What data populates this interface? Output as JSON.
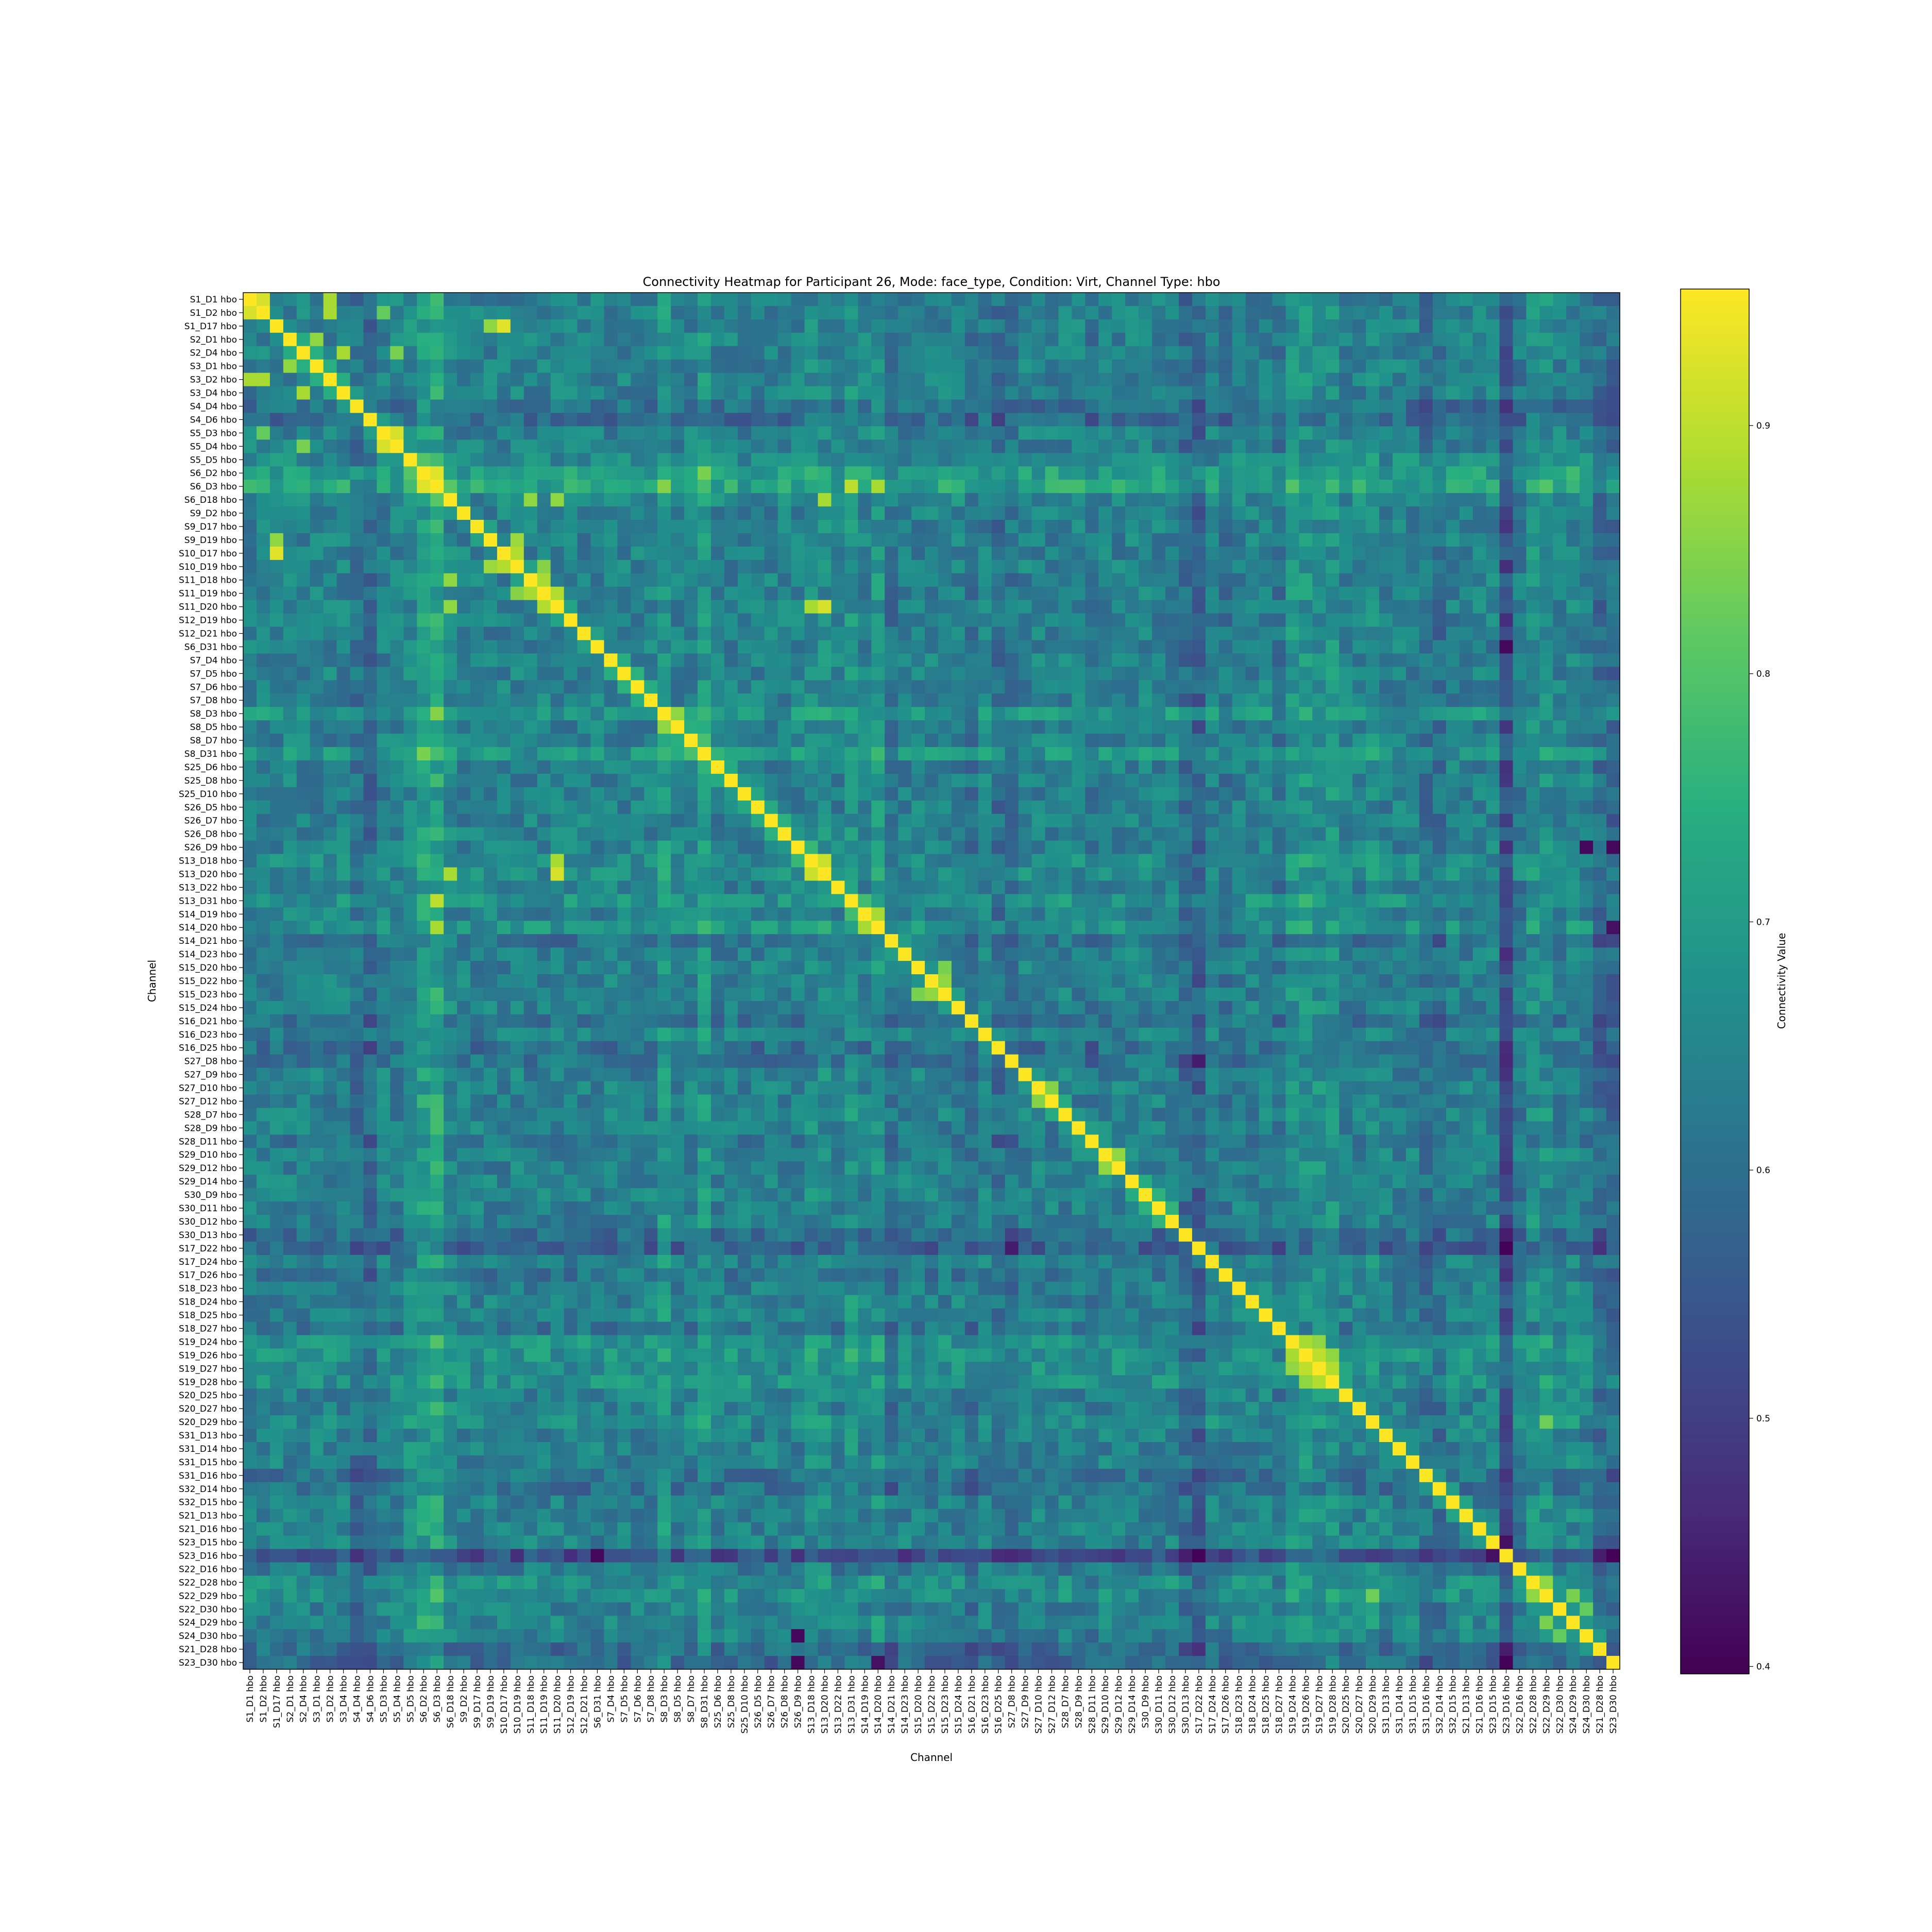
{
  "chart_data": {
    "type": "heatmap",
    "title": "Connectivity Heatmap for Participant 26, Mode: face_type, Condition: Virt, Channel Type: hbo",
    "xlabel": "Channel",
    "ylabel": "Channel",
    "colorbar_label": "Connectivity Value",
    "colormap": "viridis",
    "value_range": [
      0.397,
      0.955
    ],
    "colorbar_ticks": [
      0.4,
      0.5,
      0.6,
      0.7,
      0.8,
      0.9
    ],
    "channels": [
      "S1_D1 hbo",
      "S1_D2 hbo",
      "S1_D17 hbo",
      "S2_D1 hbo",
      "S2_D4 hbo",
      "S3_D1 hbo",
      "S3_D2 hbo",
      "S3_D4 hbo",
      "S4_D4 hbo",
      "S4_D6 hbo",
      "S5_D3 hbo",
      "S5_D4 hbo",
      "S5_D5 hbo",
      "S6_D2 hbo",
      "S6_D3 hbo",
      "S6_D18 hbo",
      "S9_D2 hbo",
      "S9_D17 hbo",
      "S9_D19 hbo",
      "S10_D17 hbo",
      "S10_D19 hbo",
      "S11_D18 hbo",
      "S11_D19 hbo",
      "S11_D20 hbo",
      "S12_D19 hbo",
      "S12_D21 hbo",
      "S6_D31 hbo",
      "S7_D4 hbo",
      "S7_D5 hbo",
      "S7_D6 hbo",
      "S7_D8 hbo",
      "S8_D3 hbo",
      "S8_D5 hbo",
      "S8_D7 hbo",
      "S8_D31 hbo",
      "S25_D6 hbo",
      "S25_D8 hbo",
      "S25_D10 hbo",
      "S26_D5 hbo",
      "S26_D7 hbo",
      "S26_D8 hbo",
      "S26_D9 hbo",
      "S13_D18 hbo",
      "S13_D20 hbo",
      "S13_D22 hbo",
      "S13_D31 hbo",
      "S14_D19 hbo",
      "S14_D20 hbo",
      "S14_D21 hbo",
      "S14_D23 hbo",
      "S15_D20 hbo",
      "S15_D22 hbo",
      "S15_D23 hbo",
      "S15_D24 hbo",
      "S16_D21 hbo",
      "S16_D23 hbo",
      "S16_D25 hbo",
      "S27_D8 hbo",
      "S27_D9 hbo",
      "S27_D10 hbo",
      "S27_D12 hbo",
      "S28_D7 hbo",
      "S28_D9 hbo",
      "S28_D11 hbo",
      "S29_D10 hbo",
      "S29_D12 hbo",
      "S29_D14 hbo",
      "S30_D9 hbo",
      "S30_D11 hbo",
      "S30_D12 hbo",
      "S30_D13 hbo",
      "S17_D22 hbo",
      "S17_D24 hbo",
      "S17_D26 hbo",
      "S18_D23 hbo",
      "S18_D24 hbo",
      "S18_D25 hbo",
      "S18_D27 hbo",
      "S19_D24 hbo",
      "S19_D26 hbo",
      "S19_D27 hbo",
      "S19_D28 hbo",
      "S20_D25 hbo",
      "S20_D27 hbo",
      "S20_D29 hbo",
      "S31_D13 hbo",
      "S31_D14 hbo",
      "S31_D15 hbo",
      "S31_D16 hbo",
      "S32_D14 hbo",
      "S32_D15 hbo",
      "S21_D13 hbo",
      "S21_D16 hbo",
      "S23_D15 hbo",
      "S23_D16 hbo",
      "S22_D16 hbo",
      "S22_D28 hbo",
      "S22_D29 hbo",
      "S22_D30 hbo",
      "S24_D29 hbo",
      "S24_D30 hbo",
      "S21_D28 hbo",
      "S23_D30 hbo"
    ],
    "diagonal": 0.955,
    "baseline": 0.64,
    "row_effects": {
      "S4_D4 hbo": -0.05,
      "S4_D6 hbo": -0.06,
      "S5_D5 hbo": 0.03,
      "S6_D2 hbo": 0.09,
      "S6_D3 hbo": 0.11,
      "S6_D18 hbo": 0.02,
      "S8_D3 hbo": 0.06,
      "S8_D31 hbo": 0.06,
      "S13_D18 hbo": 0.03,
      "S13_D20 hbo": 0.03,
      "S13_D31 hbo": 0.05,
      "S14_D20 hbo": 0.05,
      "S14_D21 hbo": -0.04,
      "S16_D21 hbo": -0.04,
      "S16_D25 hbo": -0.05,
      "S27_D8 hbo": -0.04,
      "S28_D11 hbo": -0.03,
      "S30_D13 hbo": -0.06,
      "S17_D22 hbo": -0.09,
      "S17_D26 hbo": -0.03,
      "S18_D27 hbo": -0.03,
      "S19_D24 hbo": 0.05,
      "S19_D26 hbo": 0.05,
      "S19_D27 hbo": 0.04,
      "S19_D28 hbo": 0.05,
      "S20_D29 hbo": 0.03,
      "S31_D16 hbo": -0.04,
      "S32_D14 hbo": -0.05,
      "S23_D16 hbo": -0.15,
      "S22_D16 hbo": -0.02,
      "S22_D28 hbo": 0.04,
      "S22_D29 hbo": 0.04,
      "S24_D29 hbo": 0.02,
      "S21_D28 hbo": -0.06,
      "S23_D30 hbo": -0.07
    },
    "strong_pairs": [
      [
        "S1_D1 hbo",
        "S1_D2 hbo",
        0.92
      ],
      [
        "S1_D1 hbo",
        "S3_D2 hbo",
        0.88
      ],
      [
        "S1_D2 hbo",
        "S3_D2 hbo",
        0.88
      ],
      [
        "S1_D17 hbo",
        "S10_D17 hbo",
        0.93
      ],
      [
        "S1_D17 hbo",
        "S9_D19 hbo",
        0.86
      ],
      [
        "S2_D1 hbo",
        "S3_D1 hbo",
        0.86
      ],
      [
        "S2_D4 hbo",
        "S3_D4 hbo",
        0.88
      ],
      [
        "S2_D4 hbo",
        "S5_D4 hbo",
        0.84
      ],
      [
        "S5_D3 hbo",
        "S5_D4 hbo",
        0.92
      ],
      [
        "S5_D3 hbo",
        "S1_D2 hbo",
        0.82
      ],
      [
        "S6_D2 hbo",
        "S6_D3 hbo",
        0.93
      ],
      [
        "S6_D18 hbo",
        "S11_D18 hbo",
        0.86
      ],
      [
        "S6_D18 hbo",
        "S11_D20 hbo",
        0.86
      ],
      [
        "S9_D19 hbo",
        "S10_D19 hbo",
        0.87
      ],
      [
        "S10_D17 hbo",
        "S10_D19 hbo",
        0.89
      ],
      [
        "S10_D19 hbo",
        "S11_D19 hbo",
        0.85
      ],
      [
        "S11_D18 hbo",
        "S11_D19 hbo",
        0.88
      ],
      [
        "S11_D19 hbo",
        "S11_D20 hbo",
        0.89
      ],
      [
        "S13_D18 hbo",
        "S13_D20 hbo",
        0.91
      ],
      [
        "S13_D18 hbo",
        "S11_D20 hbo",
        0.88
      ],
      [
        "S13_D20 hbo",
        "S11_D20 hbo",
        0.92
      ],
      [
        "S13_D20 hbo",
        "S6_D18 hbo",
        0.88
      ],
      [
        "S13_D31 hbo",
        "S6_D3 hbo",
        0.9
      ],
      [
        "S14_D20 hbo",
        "S6_D3 hbo",
        0.88
      ],
      [
        "S8_D3 hbo",
        "S6_D3 hbo",
        0.85
      ],
      [
        "S8_D3 hbo",
        "S8_D5 hbo",
        0.86
      ],
      [
        "S8_D31 hbo",
        "S6_D2 hbo",
        0.84
      ],
      [
        "S14_D19 hbo",
        "S14_D20 hbo",
        0.88
      ],
      [
        "S15_D22 hbo",
        "S15_D23 hbo",
        0.86
      ],
      [
        "S15_D20 hbo",
        "S15_D23 hbo",
        0.84
      ],
      [
        "S27_D10 hbo",
        "S27_D12 hbo",
        0.85
      ],
      [
        "S29_D10 hbo",
        "S29_D12 hbo",
        0.86
      ],
      [
        "S19_D24 hbo",
        "S19_D26 hbo",
        0.88
      ],
      [
        "S19_D26 hbo",
        "S19_D27 hbo",
        0.9
      ],
      [
        "S19_D27 hbo",
        "S19_D28 hbo",
        0.89
      ],
      [
        "S19_D24 hbo",
        "S19_D27 hbo",
        0.86
      ],
      [
        "S19_D26 hbo",
        "S19_D28 hbo",
        0.86
      ],
      [
        "S22_D28 hbo",
        "S22_D29 hbo",
        0.86
      ],
      [
        "S22_D29 hbo",
        "S24_D29 hbo",
        0.84
      ],
      [
        "S20_D29 hbo",
        "S22_D29 hbo",
        0.83
      ],
      [
        "S22_D30 hbo",
        "S24_D30 hbo",
        0.82
      ]
    ],
    "weak_pairs": [
      [
        "S23_D15 hbo",
        "S23_D16 hbo",
        0.42
      ],
      [
        "S23_D16 hbo",
        "S17_D22 hbo",
        0.4
      ],
      [
        "S23_D16 hbo",
        "S6_D31 hbo",
        0.41
      ],
      [
        "S23_D16 hbo",
        "S23_D30 hbo",
        0.4
      ],
      [
        "S26_D9 hbo",
        "S24_D30 hbo",
        0.41
      ],
      [
        "S26_D9 hbo",
        "S23_D30 hbo",
        0.41
      ],
      [
        "S14_D20 hbo",
        "S23_D30 hbo",
        0.42
      ],
      [
        "S17_D22 hbo",
        "S27_D8 hbo",
        0.44
      ]
    ]
  }
}
